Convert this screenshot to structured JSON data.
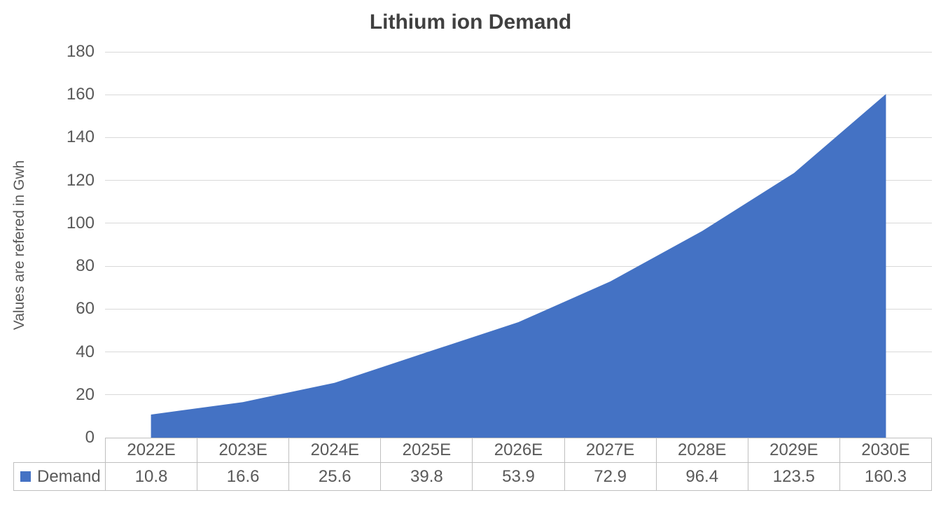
{
  "chart_data": {
    "type": "area",
    "title": "Lithium ion Demand",
    "ylabel": "Values are refered in Gwh",
    "xlabel": "",
    "categories": [
      "2022E",
      "2023E",
      "2024E",
      "2025E",
      "2026E",
      "2027E",
      "2028E",
      "2029E",
      "2030E"
    ],
    "series": [
      {
        "name": "Demand",
        "values": [
          10.8,
          16.6,
          25.6,
          39.8,
          53.9,
          72.9,
          96.4,
          123.5,
          160.3
        ]
      }
    ],
    "ylim": [
      0,
      180
    ],
    "yticks": [
      0,
      20,
      40,
      60,
      80,
      100,
      120,
      140,
      160,
      180
    ],
    "grid": true,
    "legend_position": "data-table-left",
    "colors": {
      "area_fill": "#4472C4",
      "gridline": "#d9d9d9",
      "table_border": "#bfbfbf",
      "tick_text": "#595959",
      "title_text": "#404040"
    }
  }
}
